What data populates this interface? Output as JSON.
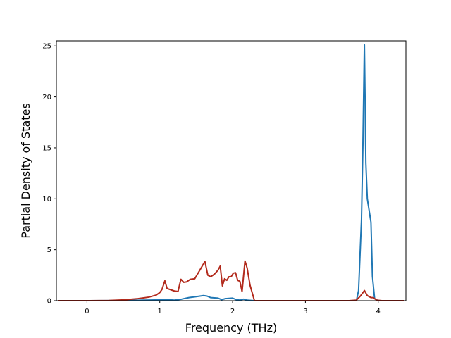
{
  "chart_data": {
    "type": "line",
    "title": "",
    "xlabel": "Frequency (THz)",
    "ylabel": "Partial Density of States",
    "xlim": [
      -0.42,
      4.38
    ],
    "ylim": [
      0,
      25.5
    ],
    "x_ticks": [
      0,
      1,
      2,
      3,
      4
    ],
    "y_ticks": [
      0,
      5,
      10,
      15,
      20,
      25
    ],
    "grid": false,
    "legend": "none",
    "series": [
      {
        "color": "#1f77b4",
        "points": [
          [
            -0.4,
            0
          ],
          [
            0.0,
            0
          ],
          [
            0.5,
            0.02
          ],
          [
            0.8,
            0.05
          ],
          [
            1.0,
            0.08
          ],
          [
            1.1,
            0.1
          ],
          [
            1.2,
            0.05
          ],
          [
            1.3,
            0.15
          ],
          [
            1.4,
            0.3
          ],
          [
            1.5,
            0.4
          ],
          [
            1.6,
            0.5
          ],
          [
            1.65,
            0.45
          ],
          [
            1.7,
            0.3
          ],
          [
            1.8,
            0.25
          ],
          [
            1.85,
            0.1
          ],
          [
            1.9,
            0.2
          ],
          [
            2.0,
            0.25
          ],
          [
            2.05,
            0.1
          ],
          [
            2.1,
            0.05
          ],
          [
            2.15,
            0.15
          ],
          [
            2.2,
            0.05
          ],
          [
            2.3,
            0
          ],
          [
            3.6,
            0
          ],
          [
            3.7,
            0
          ],
          [
            3.73,
            1.0
          ],
          [
            3.77,
            8.0
          ],
          [
            3.79,
            15.5
          ],
          [
            3.81,
            25.1
          ],
          [
            3.83,
            13.5
          ],
          [
            3.85,
            10.0
          ],
          [
            3.9,
            7.7
          ],
          [
            3.92,
            2.4
          ],
          [
            3.95,
            0.2
          ],
          [
            4.0,
            0
          ],
          [
            4.36,
            0
          ]
        ]
      },
      {
        "color": "#b22a1c",
        "points": [
          [
            -0.4,
            0
          ],
          [
            0.0,
            0
          ],
          [
            0.3,
            0.02
          ],
          [
            0.5,
            0.08
          ],
          [
            0.7,
            0.2
          ],
          [
            0.85,
            0.35
          ],
          [
            0.95,
            0.55
          ],
          [
            1.0,
            0.8
          ],
          [
            1.03,
            1.1
          ],
          [
            1.07,
            1.95
          ],
          [
            1.1,
            1.2
          ],
          [
            1.2,
            0.95
          ],
          [
            1.25,
            0.9
          ],
          [
            1.29,
            2.1
          ],
          [
            1.33,
            1.8
          ],
          [
            1.37,
            1.85
          ],
          [
            1.42,
            2.1
          ],
          [
            1.48,
            2.15
          ],
          [
            1.55,
            3.0
          ],
          [
            1.62,
            3.85
          ],
          [
            1.66,
            2.5
          ],
          [
            1.7,
            2.35
          ],
          [
            1.75,
            2.6
          ],
          [
            1.8,
            3.0
          ],
          [
            1.83,
            3.4
          ],
          [
            1.86,
            1.45
          ],
          [
            1.89,
            2.15
          ],
          [
            1.92,
            2.0
          ],
          [
            1.95,
            2.35
          ],
          [
            1.98,
            2.35
          ],
          [
            2.01,
            2.7
          ],
          [
            2.04,
            2.75
          ],
          [
            2.07,
            2.0
          ],
          [
            2.1,
            1.9
          ],
          [
            2.13,
            0.9
          ],
          [
            2.17,
            3.9
          ],
          [
            2.2,
            3.2
          ],
          [
            2.24,
            1.5
          ],
          [
            2.28,
            0.5
          ],
          [
            2.3,
            0
          ],
          [
            3.6,
            0
          ],
          [
            3.7,
            0.05
          ],
          [
            3.76,
            0.5
          ],
          [
            3.81,
            1.0
          ],
          [
            3.85,
            0.5
          ],
          [
            3.9,
            0.3
          ],
          [
            3.93,
            0.3
          ],
          [
            3.98,
            0.05
          ],
          [
            4.05,
            0
          ],
          [
            4.36,
            0
          ]
        ]
      }
    ]
  }
}
